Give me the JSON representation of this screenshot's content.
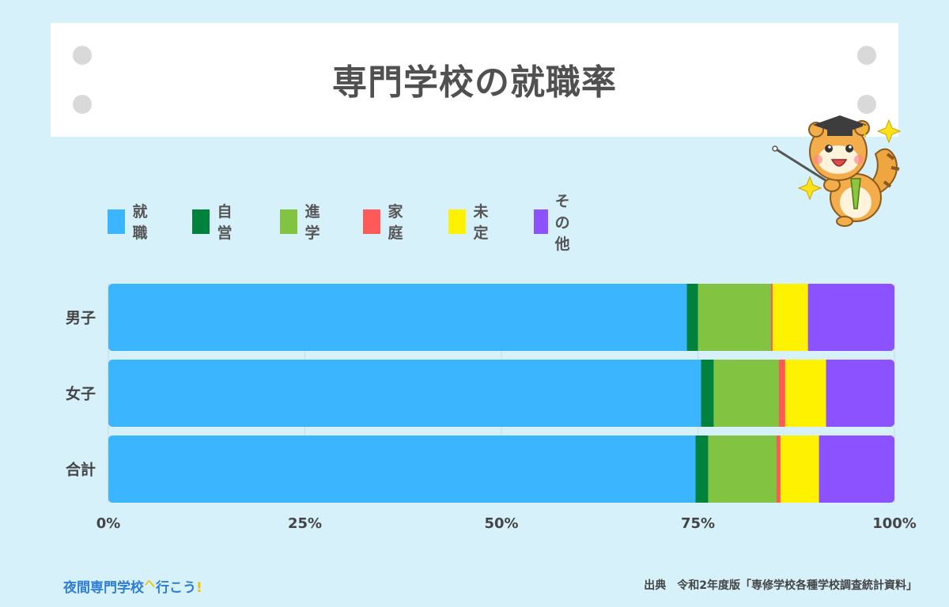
{
  "header": {
    "title": "専門学校の就職率"
  },
  "chart_data": {
    "type": "bar",
    "orientation": "horizontal",
    "stacked": true,
    "categories": [
      "男子",
      "女子",
      "合計"
    ],
    "series": [
      {
        "name": "就職",
        "color": "#3ab5fe",
        "values": [
          73.6,
          75.4,
          74.7
        ]
      },
      {
        "name": "自営",
        "color": "#00813c",
        "values": [
          1.4,
          1.6,
          1.6
        ]
      },
      {
        "name": "進学",
        "color": "#82c341",
        "values": [
          9.3,
          8.3,
          8.7
        ]
      },
      {
        "name": "家庭",
        "color": "#ff5a5a",
        "values": [
          0.2,
          0.8,
          0.5
        ]
      },
      {
        "name": "未定",
        "color": "#fff200",
        "values": [
          4.5,
          5.2,
          4.9
        ]
      },
      {
        "name": "その他",
        "color": "#8c52ff",
        "values": [
          11.0,
          8.7,
          9.6
        ]
      }
    ],
    "xlim": [
      0,
      100
    ],
    "xticks": [
      "0%",
      "25%",
      "50%",
      "75%",
      "100%"
    ],
    "grid": true,
    "legend": "top-left"
  },
  "footer": {
    "site_name_a": "夜間専門学校",
    "site_name_b": "へ",
    "site_name_c": "行こう",
    "site_name_d": "!",
    "source": "出典　令和2年度版「専修学校各種学校調査統計資料」"
  }
}
